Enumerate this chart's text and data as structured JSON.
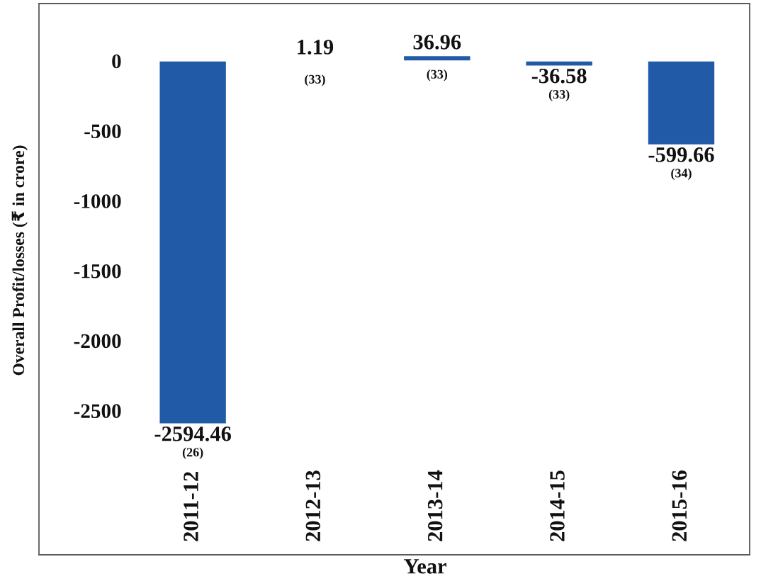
{
  "chart_data": {
    "type": "bar",
    "xlabel": "Year",
    "ylabel": "Overall Profit/losses (₹ in crore)",
    "categories": [
      "2011-12",
      "2012-13",
      "2013-14",
      "2014-15",
      "2015-16"
    ],
    "values": [
      -2594.46,
      1.19,
      36.96,
      -36.58,
      -599.66
    ],
    "color": "#215ba8",
    "ylim": [
      -3530,
      410
    ],
    "yticks": [
      -2500,
      -2000,
      -1500,
      -1000,
      -500,
      0
    ],
    "data_labels": true,
    "annotations": [
      {
        "text": "(26)",
        "x": "2011-12",
        "y": -2594.46
      },
      {
        "text": "(33)",
        "x": "2012-13",
        "y": 1.19
      },
      {
        "text": "(33)",
        "x": "2013-14",
        "y": 36.96
      },
      {
        "text": "(33)",
        "x": "2014-15",
        "y": -36.58
      },
      {
        "text": "(34)",
        "x": "2015-16",
        "y": -599.66
      }
    ]
  }
}
